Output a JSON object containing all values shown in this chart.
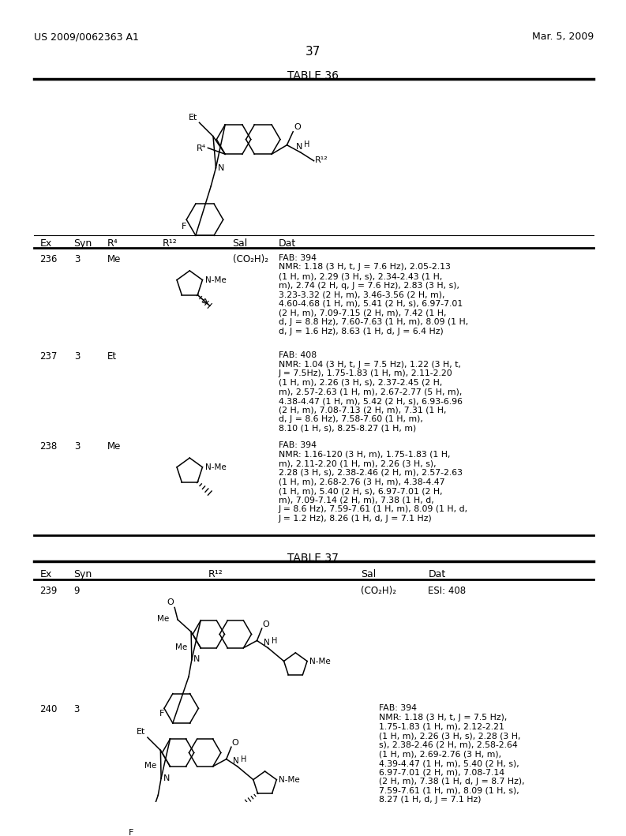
{
  "bg_color": "#ffffff",
  "page_number": "37",
  "patent_left": "US 2009/0062363 A1",
  "patent_right": "Mar. 5, 2009",
  "table36_title": "TABLE 36",
  "table37_title": "TABLE 37",
  "rows_36": [
    {
      "ex": "236",
      "syn": "3",
      "r4": "Me",
      "sal": "(CO₂H)₂",
      "dat": "FAB: 394\nNMR: 1.18 (3 H, t, J = 7.6 Hz), 2.05-2.13\n(1 H, m), 2.29 (3 H, s), 2.34-2.43 (1 H,\nm), 2.74 (2 H, q, J = 7.6 Hz), 2.83 (3 H, s),\n3.23-3.32 (2 H, m), 3.46-3.56 (2 H, m),\n4.60-4.68 (1 H, m), 5.41 (2 H, s), 6.97-7.01\n(2 H, m), 7.09-7.15 (2 H, m), 7.42 (1 H,\nd, J = 8.8 Hz), 7.60-7.63 (1 H, m), 8.09 (1 H,\nd, J = 1.6 Hz), 8.63 (1 H, d, J = 6.4 Hz)"
    },
    {
      "ex": "237",
      "syn": "3",
      "r4": "Et",
      "sal": "",
      "dat": "FAB: 408\nNMR: 1.04 (3 H, t, J = 7.5 Hz), 1.22 (3 H, t,\nJ = 7.5Hz), 1.75-1.83 (1 H, m), 2.11-2.20\n(1 H, m), 2.26 (3 H, s), 2.37-2.45 (2 H,\nm), 2.57-2.63 (1 H, m), 2.67-2.77 (5 H, m),\n4.38-4.47 (1 H, m), 5.42 (2 H, s), 6.93-6.96\n(2 H, m), 7.08-7.13 (2 H, m), 7.31 (1 H,\nd, J = 8.6 Hz), 7.58-7.60 (1 H, m),\n8.10 (1 H, s), 8.25-8.27 (1 H, m)"
    },
    {
      "ex": "238",
      "syn": "3",
      "r4": "Me",
      "sal": "",
      "dat": "FAB: 394\nNMR: 1.16-120 (3 H, m), 1.75-1.83 (1 H,\nm), 2.11-2.20 (1 H, m), 2.26 (3 H, s),\n2.28 (3 H, s), 2.38-2.46 (2 H, m), 2.57-2.63\n(1 H, m), 2.68-2.76 (3 H, m), 4.38-4.47\n(1 H, m), 5.40 (2 H, s), 6.97-7.01 (2 H,\nm), 7.09-7.14 (2 H, m), 7.38 (1 H, d,\nJ = 8.6 Hz), 7.59-7.61 (1 H, m), 8.09 (1 H, d,\nJ = 1.2 Hz), 8.26 (1 H, d, J = 7.1 Hz)"
    }
  ],
  "rows_37": [
    {
      "ex": "239",
      "syn": "9",
      "sal": "(CO₂H)₂",
      "dat": "ESI: 408"
    },
    {
      "ex": "240",
      "syn": "3",
      "sal": "",
      "dat": "FAB: 394\nNMR: 1.18 (3 H, t, J = 7.5 Hz),\n1.75-1.83 (1 H, m), 2.12-2.21\n(1 H, m), 2.26 (3 H, s), 2.28 (3 H,\ns), 2.38-2.46 (2 H, m), 2.58-2.64\n(1 H, m), 2.69-2.76 (3 H, m),\n4.39-4.47 (1 H, m), 5.40 (2 H, s),\n6.97-7.01 (2 H, m), 7.08-7.14\n(2 H, m), 7.38 (1 H, d, J = 8.7 Hz),\n7.59-7.61 (1 H, m), 8.09 (1 H, s),\n8.27 (1 H, d, J = 7.1 Hz)"
    }
  ]
}
